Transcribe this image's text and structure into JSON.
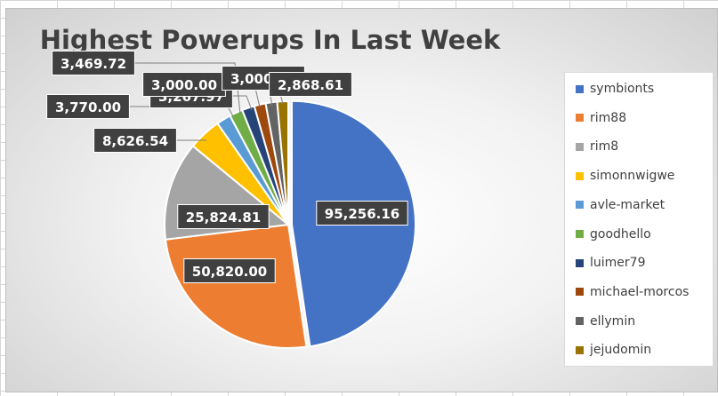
{
  "chart_data": {
    "type": "pie",
    "title": "Highest Powerups In Last Week",
    "legend_position": "right",
    "series": [
      {
        "name": "symbionts",
        "value": 95256.16,
        "label": "95,256.16",
        "color": "#4472c4"
      },
      {
        "name": "rim88",
        "value": 50820.0,
        "label": "50,820.00",
        "color": "#ed7d31"
      },
      {
        "name": "rim8",
        "value": 25824.81,
        "label": "25,824.81",
        "color": "#a5a5a5"
      },
      {
        "name": "simonnwigwe",
        "value": 8626.54,
        "label": "8,626.54",
        "color": "#ffc000"
      },
      {
        "name": "avle-market",
        "value": 3770.0,
        "label": "3,770.00",
        "color": "#5b9bd5"
      },
      {
        "name": "goodhello",
        "value": 3469.72,
        "label": "3,469.72",
        "color": "#70ad47"
      },
      {
        "name": "luimer79",
        "value": 3267.97,
        "label": "3,267.97",
        "color": "#264478"
      },
      {
        "name": "michael-morcos",
        "value": 3000.0,
        "label": "3,000.00",
        "color": "#9e480e"
      },
      {
        "name": "ellymin",
        "value": 3000.0,
        "label": "3,000.00",
        "color": "#636363"
      },
      {
        "name": "jejudomin",
        "value": 2868.61,
        "label": "2,868.61",
        "color": "#997300"
      }
    ]
  }
}
